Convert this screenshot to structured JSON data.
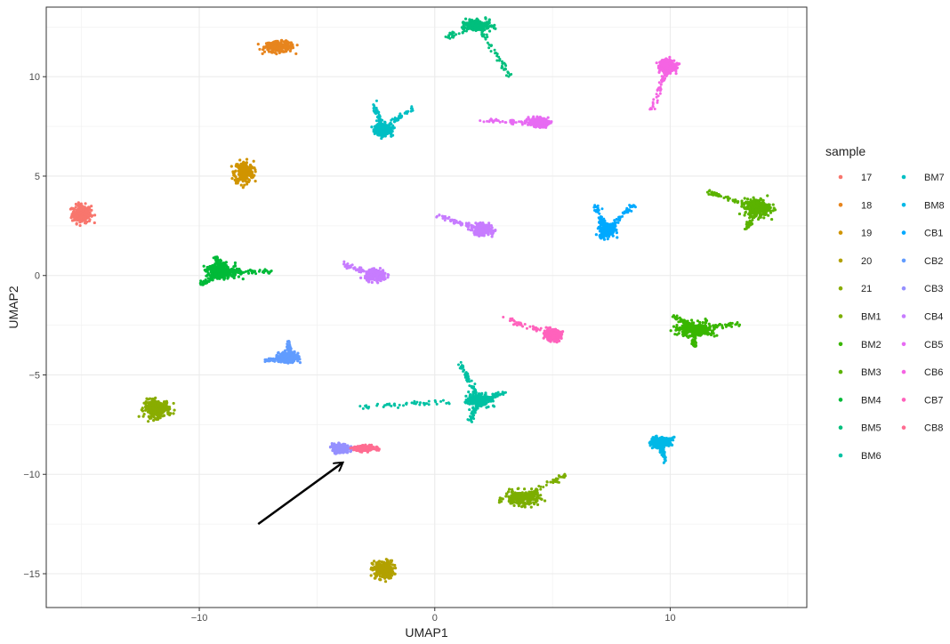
{
  "chart_data": {
    "type": "scatter",
    "xlabel": "UMAP1",
    "ylabel": "UMAP2",
    "xlim": [
      -16.5,
      15.8
    ],
    "ylim": [
      -16.7,
      13.5
    ],
    "x_ticks": [
      -10,
      0,
      10
    ],
    "y_ticks": [
      -15,
      -10,
      -5,
      0,
      5,
      10
    ],
    "x_tick_labels": [
      "−10",
      "0",
      "10"
    ],
    "y_tick_labels": [
      "−15",
      "−10",
      "−5",
      "0",
      "5",
      "10"
    ],
    "grid": true,
    "legend": {
      "title": "sample",
      "position": "right",
      "columns": [
        [
          "17",
          "18",
          "19",
          "20",
          "21",
          "BM1",
          "BM2",
          "BM3",
          "BM4",
          "BM5",
          "BM6"
        ],
        [
          "BM7",
          "BM8",
          "CB1",
          "CB2",
          "CB3",
          "CB4",
          "CB5",
          "CB6",
          "CB7",
          "CB8"
        ]
      ]
    },
    "series": [
      {
        "name": "17",
        "color": "#F8766D",
        "clusters": [
          {
            "center": [
              -15,
              3.1
            ],
            "spread": [
              0.45,
              0.5
            ],
            "shape": "blob"
          }
        ]
      },
      {
        "name": "18",
        "color": "#E7851E",
        "clusters": [
          {
            "center": [
              -6.6,
              11.5
            ],
            "spread": [
              0.7,
              0.3
            ],
            "shape": "blob"
          }
        ]
      },
      {
        "name": "19",
        "color": "#D09400",
        "clusters": [
          {
            "center": [
              -8.1,
              5.2
            ],
            "spread": [
              0.45,
              0.6
            ],
            "shape": "blob"
          }
        ]
      },
      {
        "name": "20",
        "color": "#B2A100",
        "clusters": [
          {
            "center": [
              -2.2,
              -14.8
            ],
            "spread": [
              0.5,
              0.5
            ],
            "shape": "blob"
          }
        ]
      },
      {
        "name": "21",
        "color": "#89AC00",
        "clusters": [
          {
            "center": [
              -11.8,
              -6.7
            ],
            "spread": [
              0.6,
              0.5
            ],
            "shape": "blob"
          }
        ]
      },
      {
        "name": "BM1",
        "color": "#7CAE00",
        "clusters": [
          {
            "center": [
              3.7,
              -11.2
            ],
            "spread": [
              0.8,
              0.4
            ],
            "shape": "blob",
            "tail": [
              [
                5.6,
                -10.0
              ]
            ]
          }
        ]
      },
      {
        "name": "BM2",
        "color": "#39B600",
        "clusters": [
          {
            "center": [
              11.1,
              -2.7
            ],
            "spread": [
              0.9,
              0.4
            ],
            "shape": "blob",
            "tail": [
              [
                13.0,
                -2.4
              ],
              [
                10.1,
                -2.0
              ],
              [
                11.0,
                -3.5
              ]
            ]
          }
        ]
      },
      {
        "name": "BM3",
        "color": "#5BB300",
        "clusters": [
          {
            "center": [
              13.7,
              3.4
            ],
            "spread": [
              0.6,
              0.5
            ],
            "shape": "blob",
            "tail": [
              [
                11.6,
                4.2
              ],
              [
                13.2,
                2.2
              ]
            ]
          }
        ]
      },
      {
        "name": "BM4",
        "color": "#00BA38",
        "clusters": [
          {
            "center": [
              -9.0,
              0.2
            ],
            "spread": [
              0.8,
              0.4
            ],
            "shape": "blob",
            "tail": [
              [
                -6.9,
                0.2
              ],
              [
                -10.0,
                -0.5
              ],
              [
                -9.3,
                0.9
              ]
            ]
          }
        ]
      },
      {
        "name": "BM5",
        "color": "#00BF7D",
        "clusters": [
          {
            "center": [
              1.8,
              12.6
            ],
            "spread": [
              0.6,
              0.3
            ],
            "shape": "blob",
            "tail": [
              [
                0.6,
                12.0
              ],
              [
                3.2,
                10.0
              ]
            ]
          }
        ]
      },
      {
        "name": "BM6",
        "color": "#00C1A3",
        "clusters": [
          {
            "center": [
              1.9,
              -6.3
            ],
            "spread": [
              0.5,
              0.35
            ],
            "shape": "blob",
            "tail": [
              [
                1.1,
                -4.5
              ],
              [
                1.5,
                -7.3
              ],
              [
                3.0,
                -5.9
              ],
              [
                -3.2,
                -6.6
              ]
            ]
          }
        ]
      },
      {
        "name": "BM7",
        "color": "#00BFC4",
        "clusters": [
          {
            "center": [
              -2.2,
              7.3
            ],
            "spread": [
              0.4,
              0.35
            ],
            "shape": "blob",
            "tail": [
              [
                -0.9,
                8.5
              ],
              [
                -2.6,
                8.7
              ]
            ]
          }
        ]
      },
      {
        "name": "BM8",
        "color": "#00B8E7",
        "clusters": [
          {
            "center": [
              9.6,
              -8.4
            ],
            "spread": [
              0.5,
              0.3
            ],
            "shape": "blob",
            "tail": [
              [
                9.8,
                -9.4
              ]
            ]
          }
        ]
      },
      {
        "name": "CB1",
        "color": "#00A9FF",
        "clusters": [
          {
            "center": [
              7.3,
              2.3
            ],
            "spread": [
              0.35,
              0.4
            ],
            "shape": "blob",
            "tail": [
              [
                8.5,
                3.6
              ],
              [
                6.8,
                3.5
              ]
            ]
          }
        ]
      },
      {
        "name": "CB2",
        "color": "#619CFF",
        "clusters": [
          {
            "center": [
              -6.2,
              -4.1
            ],
            "spread": [
              0.45,
              0.3
            ],
            "shape": "blob",
            "tail": [
              [
                -6.2,
                -3.3
              ],
              [
                -7.2,
                -4.3
              ]
            ]
          }
        ]
      },
      {
        "name": "CB3",
        "color": "#9590FF",
        "clusters": [
          {
            "center": [
              -4.0,
              -8.7
            ],
            "spread": [
              0.4,
              0.25
            ],
            "shape": "blob"
          }
        ]
      },
      {
        "name": "CB4",
        "color": "#C77CFF",
        "clusters": [
          {
            "center": [
              -2.5,
              0.0
            ],
            "spread": [
              0.5,
              0.3
            ],
            "shape": "blob",
            "tail": [
              [
                -3.9,
                0.6
              ]
            ]
          },
          {
            "center": [
              2.0,
              2.3
            ],
            "spread": [
              0.45,
              0.3
            ],
            "shape": "blob",
            "tail": [
              [
                0.1,
                3.0
              ]
            ]
          }
        ]
      },
      {
        "name": "CB5",
        "color": "#E76BF3",
        "clusters": [
          {
            "center": [
              4.4,
              7.7
            ],
            "spread": [
              0.45,
              0.25
            ],
            "shape": "blob",
            "tail": [
              [
                2.0,
                7.8
              ]
            ]
          }
        ]
      },
      {
        "name": "CB6",
        "color": "#F564E3",
        "clusters": [
          {
            "center": [
              9.9,
              10.5
            ],
            "spread": [
              0.4,
              0.4
            ],
            "shape": "blob",
            "tail": [
              [
                9.2,
                8.3
              ]
            ]
          }
        ]
      },
      {
        "name": "CB7",
        "color": "#FF62BC",
        "clusters": [
          {
            "center": [
              5.0,
              -3.0
            ],
            "spread": [
              0.4,
              0.3
            ],
            "shape": "blob",
            "tail": [
              [
                2.9,
                -2.1
              ]
            ]
          }
        ]
      },
      {
        "name": "CB8",
        "color": "#FF6C91",
        "clusters": [
          {
            "center": [
              -3.0,
              -8.7
            ],
            "spread": [
              0.5,
              0.15
            ],
            "shape": "blob"
          }
        ]
      }
    ],
    "annotations": [
      {
        "type": "arrow",
        "from": [
          -7.5,
          -12.5
        ],
        "to": [
          -3.9,
          -9.4
        ],
        "color": "#000000"
      }
    ]
  }
}
